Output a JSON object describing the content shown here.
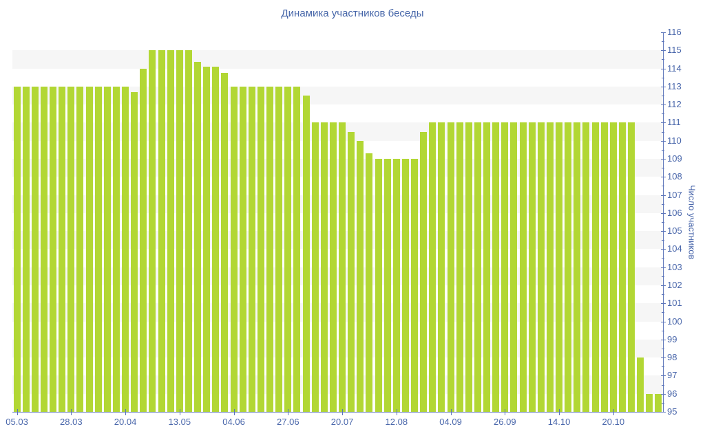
{
  "chart_data": {
    "type": "bar",
    "title": "Динамика участников беседы",
    "ylabel": "Число участников",
    "xlabel": "",
    "ylim": [
      95,
      116
    ],
    "y_tick_step": 1,
    "grid": "horizontal-alternating-bands",
    "legend_position": "none",
    "x_tick_labels": [
      "05.03",
      "28.03",
      "20.04",
      "13.05",
      "04.06",
      "27.06",
      "20.07",
      "12.08",
      "04.09",
      "26.09",
      "14.10",
      "20.10"
    ],
    "x_tick_indices": [
      0,
      6,
      12,
      18,
      24,
      30,
      36,
      42,
      48,
      54,
      60,
      66
    ],
    "values": [
      113,
      113,
      113,
      113,
      113,
      113,
      113,
      113,
      113,
      113,
      113,
      113,
      113,
      112.7,
      114,
      115,
      115,
      115,
      115,
      115,
      114.35,
      114.1,
      114.1,
      113.75,
      113,
      113,
      113,
      113,
      113,
      113,
      113,
      113,
      112.5,
      111,
      111,
      111,
      111,
      110.5,
      110,
      109.3,
      109,
      109,
      109,
      109,
      109,
      110.5,
      111,
      111,
      111,
      111,
      111,
      111,
      111,
      111,
      111,
      111,
      111,
      111,
      111,
      111,
      111,
      111,
      111,
      111,
      111,
      111,
      111,
      111,
      111,
      98,
      96,
      96
    ],
    "colors": {
      "bar": "#b2d734",
      "band": "#f6f6f6",
      "axis": "#5b74b9",
      "tick_text": "#4a67ab",
      "title_text": "#4565a8",
      "background": "#ffffff"
    }
  }
}
